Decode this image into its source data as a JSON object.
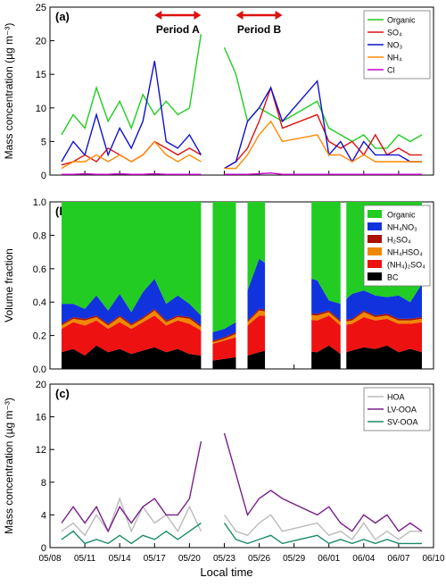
{
  "figure": {
    "xlabel": "Local time",
    "xticks": [
      "05/08",
      "05/11",
      "05/14",
      "05/17",
      "05/20",
      "05/23",
      "05/26",
      "05/29",
      "06/01",
      "06/04",
      "06/07",
      "06/10"
    ],
    "x_start_day": "05/08",
    "x_end_day": "06/10",
    "period_a": {
      "label": "Period A",
      "start": "05/17",
      "end": "05/21"
    },
    "period_b": {
      "label": "Period B",
      "start": "05/24",
      "end": "05/28"
    },
    "colors": {
      "Organic": "#22cc22",
      "SO4": "#dd1111",
      "NO3": "#1111cc",
      "NH4": "#ff8800",
      "Cl": "#cc00cc",
      "NH4NO3": "#1133dd",
      "H2SO4": "#aa1100",
      "NH4HSO4": "#ee8800",
      "NH42SO4": "#ee1111",
      "BC": "#000000",
      "HOA": "#bbbbbb",
      "LV-OOA": "#7a1f8a",
      "SV-OOA": "#1a8a6a",
      "period_arrow": "#dd1111"
    }
  },
  "chart_data": [
    {
      "panel": "(a)",
      "type": "line",
      "ylabel": "Mass concentration (µg m⁻³)",
      "ylim": [
        0,
        25
      ],
      "yticks": [
        0,
        5,
        10,
        15,
        20,
        25
      ],
      "legend": {
        "placement": "top-right",
        "entries": [
          "Organic",
          "SO₄",
          "NO₃",
          "NH₄",
          "Cl"
        ]
      },
      "x": [
        "05/09",
        "05/10",
        "05/11",
        "05/12",
        "05/13",
        "05/14",
        "05/15",
        "05/16",
        "05/17",
        "05/18",
        "05/19",
        "05/20",
        "05/21",
        "05/22",
        "05/23",
        "05/24",
        "05/25",
        "05/26",
        "05/27",
        "05/28",
        "05/31",
        "06/01",
        "06/02",
        "06/03",
        "06/04",
        "06/05",
        "06/06",
        "06/07",
        "06/08",
        "06/09"
      ],
      "series": [
        {
          "name": "Organic",
          "values": [
            6,
            9,
            7,
            13,
            8,
            11,
            7,
            12,
            9,
            11,
            9,
            10,
            21,
            null,
            19,
            15,
            8,
            10,
            9,
            8,
            11,
            7,
            6,
            5,
            6,
            4,
            4,
            6,
            5,
            6
          ]
        },
        {
          "name": "SO₄",
          "values": [
            1.5,
            2,
            3,
            2,
            4,
            3,
            2,
            3,
            5,
            4,
            3,
            4,
            3,
            null,
            1,
            2,
            4,
            8,
            13,
            7,
            9,
            5,
            4,
            5,
            3,
            6,
            3,
            4,
            3,
            3
          ]
        },
        {
          "name": "NO₃",
          "values": [
            2,
            5,
            3,
            9,
            3,
            7,
            4,
            8,
            17,
            5,
            4,
            6,
            3,
            null,
            1,
            2,
            8,
            10,
            13,
            8,
            14,
            3,
            5,
            2,
            5,
            3,
            3,
            3,
            2,
            2
          ]
        },
        {
          "name": "NH₄",
          "values": [
            1,
            2,
            2,
            3,
            2,
            3,
            2,
            3,
            5,
            3,
            2,
            3,
            2,
            null,
            1,
            1,
            3,
            6,
            8,
            5,
            6,
            3,
            3,
            2,
            3,
            2,
            2,
            2,
            2,
            2
          ]
        },
        {
          "name": "Cl",
          "values": [
            0.1,
            0.1,
            0.2,
            0.1,
            0.1,
            0.2,
            0.1,
            0.1,
            0.2,
            0.1,
            0.1,
            0.1,
            0.1,
            null,
            0.1,
            0.1,
            0.1,
            0.2,
            0.3,
            0.1,
            0.1,
            0.1,
            0.1,
            0.1,
            0.1,
            0.1,
            0.1,
            0.1,
            0.1,
            0.1
          ]
        }
      ]
    },
    {
      "panel": "(b)",
      "type": "area",
      "stacked": true,
      "ylabel": "Volume fraction",
      "ylim": [
        0,
        1.0
      ],
      "yticks": [
        "0.0",
        "0.2",
        "0.4",
        "0.6",
        "0.8",
        "1.0"
      ],
      "legend": {
        "placement": "top-right",
        "entries": [
          "Organic",
          "NH₄NO₃",
          "H₂SO₄",
          "NH₄HSO₄",
          "(NH₄)₂SO₄",
          "BC"
        ]
      },
      "segments": [
        {
          "start": "05/09",
          "end": "05/21"
        },
        {
          "start": "05/22",
          "end": "05/24"
        },
        {
          "start": "05/25",
          "end": "05/26.5"
        },
        {
          "start": "05/30.5",
          "end": "06/02"
        },
        {
          "start": "06/02.5",
          "end": "06/09.5"
        }
      ],
      "x": [
        "05/09",
        "05/10",
        "05/11",
        "05/12",
        "05/13",
        "05/14",
        "05/15",
        "05/16",
        "05/17",
        "05/18",
        "05/19",
        "05/20",
        "05/21",
        "05/22",
        "05/23",
        "05/24",
        "05/25",
        "05/26",
        "05/27",
        "05/31",
        "06/01",
        "06/02",
        "06/03",
        "06/04",
        "06/05",
        "06/06",
        "06/07",
        "06/08",
        "06/09"
      ],
      "series": [
        {
          "name": "BC",
          "values": [
            0.1,
            0.12,
            0.08,
            0.14,
            0.1,
            0.12,
            0.09,
            0.11,
            0.13,
            0.1,
            0.12,
            0.09,
            0.08,
            0.05,
            0.06,
            0.07,
            0.08,
            0.1,
            0.12,
            0.1,
            0.14,
            0.09,
            0.11,
            0.13,
            0.12,
            0.14,
            0.1,
            0.12,
            0.1
          ]
        },
        {
          "name": "(NH₄)₂SO₄",
          "values": [
            0.14,
            0.16,
            0.18,
            0.15,
            0.14,
            0.16,
            0.15,
            0.17,
            0.19,
            0.16,
            0.17,
            0.18,
            0.15,
            0.1,
            0.11,
            0.12,
            0.18,
            0.22,
            0.2,
            0.19,
            0.18,
            0.17,
            0.16,
            0.18,
            0.17,
            0.16,
            0.17,
            0.15,
            0.18
          ]
        },
        {
          "name": "NH₄HSO₄",
          "values": [
            0.02,
            0.02,
            0.03,
            0.02,
            0.02,
            0.03,
            0.02,
            0.02,
            0.03,
            0.02,
            0.02,
            0.03,
            0.02,
            0.01,
            0.01,
            0.02,
            0.02,
            0.03,
            0.02,
            0.03,
            0.02,
            0.02,
            0.02,
            0.03,
            0.02,
            0.02,
            0.02,
            0.02,
            0.02
          ]
        },
        {
          "name": "H₂SO₄",
          "values": [
            0.01,
            0.01,
            0.01,
            0.01,
            0.01,
            0.01,
            0.01,
            0.01,
            0.01,
            0.01,
            0.01,
            0.01,
            0.01,
            0.01,
            0.01,
            0.01,
            0.01,
            0.01,
            0.01,
            0.01,
            0.01,
            0.01,
            0.01,
            0.01,
            0.01,
            0.01,
            0.01,
            0.01,
            0.01
          ]
        },
        {
          "name": "NH₄NO₃",
          "values": [
            0.12,
            0.08,
            0.06,
            0.12,
            0.08,
            0.13,
            0.07,
            0.15,
            0.18,
            0.1,
            0.12,
            0.08,
            0.06,
            0.05,
            0.05,
            0.06,
            0.18,
            0.3,
            0.26,
            0.2,
            0.06,
            0.1,
            0.15,
            0.12,
            0.12,
            0.1,
            0.14,
            0.1,
            0.2
          ]
        },
        {
          "name": "Organic",
          "values": [
            0.61,
            0.61,
            0.64,
            0.56,
            0.65,
            0.55,
            0.66,
            0.54,
            0.46,
            0.61,
            0.56,
            0.61,
            0.68,
            0.78,
            0.76,
            0.72,
            0.53,
            0.34,
            0.39,
            0.47,
            0.59,
            0.61,
            0.55,
            0.53,
            0.56,
            0.57,
            0.56,
            0.6,
            0.49
          ]
        }
      ]
    },
    {
      "panel": "(c)",
      "type": "line",
      "ylabel": "Mass concentration (µg m⁻³)",
      "ylim": [
        0,
        20
      ],
      "yticks": [
        0,
        4,
        8,
        12,
        16,
        20
      ],
      "legend": {
        "placement": "top-right",
        "entries": [
          "HOA",
          "LV-OOA",
          "SV-OOA"
        ]
      },
      "x": [
        "05/09",
        "05/10",
        "05/11",
        "05/12",
        "05/13",
        "05/14",
        "05/15",
        "05/16",
        "05/17",
        "05/18",
        "05/19",
        "05/20",
        "05/21",
        "05/22",
        "05/23",
        "05/24",
        "05/25",
        "05/26",
        "05/27",
        "05/28",
        "05/31",
        "06/01",
        "06/02",
        "06/03",
        "06/04",
        "06/05",
        "06/06",
        "06/07",
        "06/08",
        "06/09"
      ],
      "series": [
        {
          "name": "HOA",
          "values": [
            2,
            3,
            1.5,
            4,
            2,
            6,
            2,
            5,
            3,
            4,
            2,
            5,
            2,
            null,
            4,
            2,
            1.5,
            3,
            4,
            2,
            3,
            1.5,
            2,
            1,
            3,
            1,
            2,
            1,
            2,
            2
          ]
        },
        {
          "name": "LV-OOA",
          "values": [
            3,
            5,
            3,
            5,
            2,
            5,
            3,
            5,
            6,
            4,
            4,
            6,
            13,
            null,
            14,
            9,
            4,
            6,
            7,
            6,
            4,
            5,
            3,
            2,
            4,
            3,
            4,
            2,
            3,
            2
          ]
        },
        {
          "name": "SV-OOA",
          "values": [
            1,
            2,
            0.5,
            1,
            0.5,
            1.5,
            0.5,
            1.5,
            1,
            2,
            1,
            2,
            3,
            null,
            3,
            1,
            0.5,
            1,
            1.5,
            0.5,
            1.5,
            0.5,
            1,
            0.5,
            1,
            0.5,
            1,
            0.5,
            0.5,
            0.5
          ]
        }
      ]
    }
  ]
}
